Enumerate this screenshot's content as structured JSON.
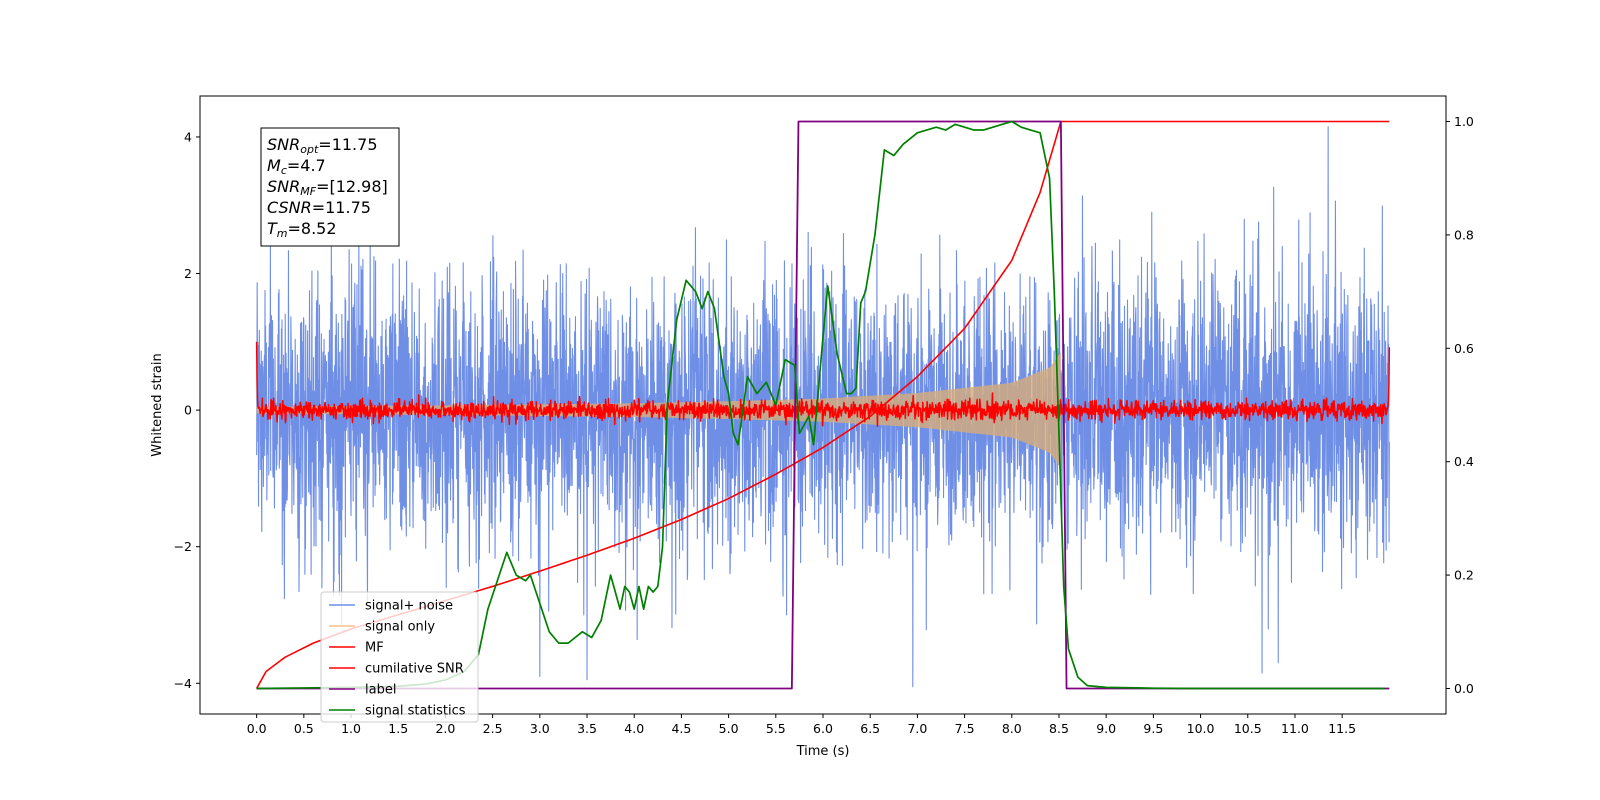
{
  "chart_data": {
    "type": "line",
    "xlabel": "Time (s)",
    "ylabel": "Whitened strain",
    "xlim": [
      -0.6,
      12.6
    ],
    "ylim": [
      -4.45,
      4.6
    ],
    "y2lim": [
      -0.045,
      1.045
    ],
    "xticks": [
      0.0,
      0.5,
      1.0,
      1.5,
      2.0,
      2.5,
      3.0,
      3.5,
      4.0,
      4.5,
      5.0,
      5.5,
      6.0,
      6.5,
      7.0,
      7.5,
      8.0,
      8.5,
      9.0,
      9.5,
      10.0,
      10.5,
      11.0,
      11.5
    ],
    "xtick_labels": [
      "0.0",
      "0.5",
      "1.0",
      "1.5",
      "2.0",
      "2.5",
      "3.0",
      "3.5",
      "4.0",
      "4.5",
      "5.0",
      "5.5",
      "6.0",
      "6.5",
      "7.0",
      "7.5",
      "8.0",
      "8.5",
      "9.0",
      "9.5",
      "10.0",
      "10.5",
      "11.0",
      "11.5"
    ],
    "yticks": [
      -4,
      -2,
      0,
      2,
      4
    ],
    "ytick_labels": [
      "−4",
      "−2",
      "0",
      "2",
      "4"
    ],
    "y2ticks": [
      0.0,
      0.2,
      0.4,
      0.6,
      0.8,
      1.0
    ],
    "y2tick_labels": [
      "0.0",
      "0.2",
      "0.4",
      "0.6",
      "0.8",
      "1.0"
    ],
    "info_box": [
      {
        "base": "SNR",
        "sub": "opt",
        "rest": "=11.75"
      },
      {
        "base": "M",
        "sub": "c",
        "rest": "=4.7"
      },
      {
        "base": "SNR",
        "sub": "MF",
        "rest": "=[12.98]"
      },
      {
        "base": "CSNR",
        "sub": "",
        "rest": "=11.75"
      },
      {
        "base": "T",
        "sub": "m",
        "rest": "=8.52"
      }
    ],
    "legend": {
      "placement": "lower-left",
      "entries": [
        {
          "label": "signal+ noise",
          "color": "#6f8fe6"
        },
        {
          "label": "signal only",
          "color": "#f5c08a"
        },
        {
          "label": "MF",
          "color": "#ff0000"
        },
        {
          "label": "cumilative SNR",
          "color": "#ff0000"
        },
        {
          "label": "label",
          "color": "#800080"
        },
        {
          "label": "signal statistics",
          "color": "#008000"
        }
      ]
    },
    "series": [
      {
        "name": "signal+ noise",
        "axis": "left",
        "kind": "noise",
        "color": "#6f8fe6",
        "x_range": [
          0.0,
          12.0
        ],
        "std": 1.0,
        "notable_peaks": [
          [
            3.0,
            -3.9
          ],
          [
            3.5,
            -3.95
          ],
          [
            6.95,
            -4.05
          ],
          [
            11.35,
            4.15
          ],
          [
            10.65,
            -3.85
          ]
        ]
      },
      {
        "name": "signal only",
        "axis": "left",
        "kind": "chirp-envelope",
        "color": "#f5c08a",
        "x_range": [
          0.0,
          8.52
        ],
        "envelope": [
          [
            0.0,
            0.05
          ],
          [
            2.0,
            0.07
          ],
          [
            4.0,
            0.1
          ],
          [
            5.0,
            0.13
          ],
          [
            6.0,
            0.17
          ],
          [
            7.0,
            0.25
          ],
          [
            8.0,
            0.4
          ],
          [
            8.4,
            0.62
          ],
          [
            8.52,
            0.85
          ]
        ]
      },
      {
        "name": "MF",
        "axis": "left",
        "kind": "noise",
        "color": "#ff0000",
        "x_range": [
          0.0,
          12.0
        ],
        "std": 0.07,
        "edges": [
          [
            0.0,
            1.0
          ],
          [
            12.0,
            0.92
          ]
        ]
      },
      {
        "name": "cumilative SNR",
        "axis": "right",
        "color": "#ff0000",
        "x": [
          0.0,
          0.1,
          0.3,
          0.6,
          1.0,
          1.5,
          2.0,
          2.5,
          3.0,
          3.5,
          4.0,
          4.5,
          5.0,
          5.5,
          6.0,
          6.5,
          7.0,
          7.5,
          8.0,
          8.3,
          8.52,
          12.0
        ],
        "y": [
          0.0,
          0.03,
          0.055,
          0.08,
          0.105,
          0.13,
          0.155,
          0.18,
          0.207,
          0.235,
          0.265,
          0.298,
          0.335,
          0.378,
          0.425,
          0.48,
          0.55,
          0.635,
          0.755,
          0.875,
          1.0,
          1.0
        ]
      },
      {
        "name": "label",
        "axis": "right",
        "color": "#800080",
        "x": [
          0.0,
          5.67,
          5.74,
          8.52,
          8.58,
          12.0
        ],
        "y": [
          0.0,
          0.0,
          1.0,
          1.0,
          0.0,
          0.0
        ]
      },
      {
        "name": "signal statistics",
        "axis": "right",
        "color": "#008000",
        "x": [
          0.0,
          0.5,
          1.0,
          1.5,
          1.8,
          2.0,
          2.2,
          2.35,
          2.45,
          2.55,
          2.65,
          2.75,
          2.85,
          2.9,
          3.0,
          3.1,
          3.2,
          3.3,
          3.45,
          3.55,
          3.65,
          3.75,
          3.85,
          3.9,
          3.95,
          4.0,
          4.05,
          4.1,
          4.15,
          4.2,
          4.25,
          4.3,
          4.35,
          4.45,
          4.55,
          4.65,
          4.72,
          4.78,
          4.85,
          4.95,
          5.0,
          5.05,
          5.1,
          5.2,
          5.3,
          5.4,
          5.5,
          5.6,
          5.7,
          5.75,
          5.85,
          5.9,
          6.0,
          6.05,
          6.15,
          6.25,
          6.3,
          6.35,
          6.4,
          6.45,
          6.55,
          6.65,
          6.75,
          6.85,
          7.0,
          7.2,
          7.3,
          7.4,
          7.5,
          7.6,
          7.7,
          7.8,
          7.9,
          8.0,
          8.1,
          8.2,
          8.3,
          8.4,
          8.45,
          8.5,
          8.55,
          8.6,
          8.7,
          8.8,
          9.0,
          9.5,
          10.0,
          11.0,
          11.95
        ],
        "y": [
          0.0,
          0.001,
          0.002,
          0.004,
          0.008,
          0.015,
          0.03,
          0.06,
          0.14,
          0.19,
          0.24,
          0.2,
          0.19,
          0.2,
          0.15,
          0.1,
          0.08,
          0.08,
          0.1,
          0.09,
          0.12,
          0.2,
          0.14,
          0.18,
          0.17,
          0.14,
          0.18,
          0.14,
          0.18,
          0.17,
          0.18,
          0.25,
          0.5,
          0.65,
          0.72,
          0.7,
          0.67,
          0.7,
          0.67,
          0.55,
          0.52,
          0.45,
          0.43,
          0.55,
          0.52,
          0.54,
          0.5,
          0.58,
          0.57,
          0.45,
          0.48,
          0.43,
          0.62,
          0.71,
          0.59,
          0.52,
          0.52,
          0.53,
          0.68,
          0.7,
          0.8,
          0.95,
          0.94,
          0.96,
          0.98,
          0.99,
          0.985,
          0.995,
          0.99,
          0.985,
          0.985,
          0.99,
          0.995,
          1.0,
          0.99,
          0.985,
          0.98,
          0.9,
          0.7,
          0.45,
          0.18,
          0.07,
          0.02,
          0.005,
          0.002,
          0.0005,
          0.0,
          0.0,
          0.0
        ]
      }
    ]
  }
}
